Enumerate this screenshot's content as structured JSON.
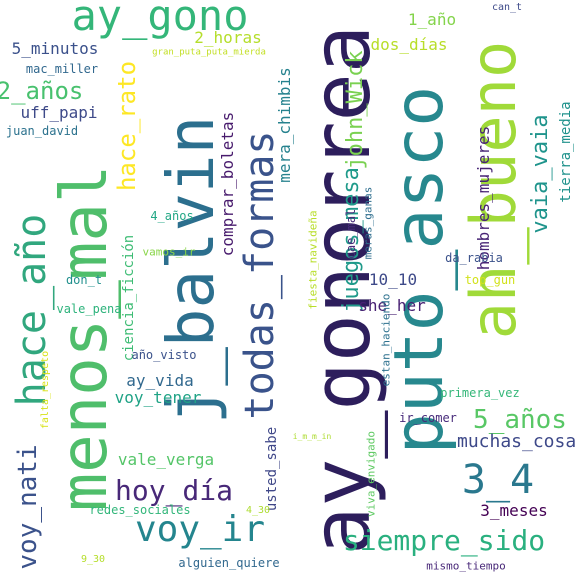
{
  "words": [
    {
      "text": "ay_gonorrea",
      "color": "#2d1e5c"
    },
    {
      "text": "puto_asco",
      "color": "#27888e"
    },
    {
      "text": "menos_mal",
      "color": "#4fbe6b"
    },
    {
      "text": "ah_bueno",
      "color": "#a0da39"
    },
    {
      "text": "j_balvin",
      "color": "#2c6f8e"
    },
    {
      "text": "todas_formas",
      "color": "#3a538b"
    },
    {
      "text": "ay_gono",
      "color": "#34b679"
    },
    {
      "text": "hace_año",
      "color": "#31a77e"
    },
    {
      "text": "voy_ir",
      "color": "#24858e"
    },
    {
      "text": "3_4",
      "color": "#2a788e"
    },
    {
      "text": "voy_nati",
      "color": "#3b528b"
    },
    {
      "text": "siempre_sido",
      "color": "#2ab07f"
    },
    {
      "text": "hoy_día",
      "color": "#482878"
    },
    {
      "text": "juegos_mesa",
      "color": "#1f9a8a"
    },
    {
      "text": "john_Wick",
      "color": "#7ad151"
    },
    {
      "text": "2_años",
      "color": "#48c16e"
    },
    {
      "text": "5_años",
      "color": "#58c765"
    },
    {
      "text": "vaia_vaia",
      "color": "#1f948c"
    },
    {
      "text": "hace_rato",
      "color": "#fde725"
    },
    {
      "text": "uff_papi",
      "color": "#3e4a89"
    },
    {
      "text": "vale_verga",
      "color": "#54c568"
    },
    {
      "text": "comprar_boletas",
      "color": "#481b6d"
    },
    {
      "text": "muchas_cosas",
      "color": "#3e4989"
    },
    {
      "text": "ay_vida",
      "color": "#31688e"
    },
    {
      "text": "2_horas",
      "color": "#b5de2b"
    },
    {
      "text": "voy_tener",
      "color": "#20a386"
    },
    {
      "text": "dos_días",
      "color": "#b8de29"
    },
    {
      "text": "5_minutos",
      "color": "#3b518b"
    },
    {
      "text": "mera_chimbis",
      "color": "#26828e"
    },
    {
      "text": "1_año",
      "color": "#84d44b"
    },
    {
      "text": "10_10",
      "color": "#3e4a89"
    },
    {
      "text": "she_her",
      "color": "#482173"
    },
    {
      "text": "hombres_mujeres",
      "color": "#482475"
    },
    {
      "text": "ciencia_ficción",
      "color": "#3dbc74"
    },
    {
      "text": "usted_sabe",
      "color": "#3f4788"
    },
    {
      "text": "tierra_media",
      "color": "#20928c"
    },
    {
      "text": "3_meses",
      "color": "#440154"
    },
    {
      "text": "4_años",
      "color": "#22a785"
    },
    {
      "text": "mac_miller",
      "color": "#31688e"
    },
    {
      "text": "juan_david",
      "color": "#2c728e"
    },
    {
      "text": "vamos_ir",
      "color": "#89d548"
    },
    {
      "text": "cae_mal",
      "color": "#472c7a"
    },
    {
      "text": "meras_ganas",
      "color": "#2e6e8e"
    },
    {
      "text": "da_rabia",
      "color": "#3b528b"
    },
    {
      "text": "don_t",
      "color": "#21908d"
    },
    {
      "text": "top_gun",
      "color": "#d2e21b"
    },
    {
      "text": "vale_pena",
      "color": "#2eb37c"
    },
    {
      "text": "estan_haciendo",
      "color": "#2d718e"
    },
    {
      "text": "año_visto",
      "color": "#3b528b"
    },
    {
      "text": "primera_vez",
      "color": "#35b779"
    },
    {
      "text": "ir_comer",
      "color": "#472a7a"
    },
    {
      "text": "redes_sociales",
      "color": "#32b67a"
    },
    {
      "text": "alguien_quiere",
      "color": "#31688e"
    },
    {
      "text": "mismo_tiempo",
      "color": "#482878"
    },
    {
      "text": "viva_envigado",
      "color": "#5ec962"
    },
    {
      "text": "fiesta_navideña",
      "color": "#b8de29"
    },
    {
      "text": "falta_respeto",
      "color": "#d8e219"
    },
    {
      "text": "gran_puta_puta_mierda",
      "color": "#c2df23"
    },
    {
      "text": "can_t",
      "color": "#3e4a89"
    },
    {
      "text": "i_m_m_in",
      "color": "#addc30"
    },
    {
      "text": "4_30",
      "color": "#addc30"
    },
    {
      "text": "9_30",
      "color": "#b5de2b"
    }
  ]
}
